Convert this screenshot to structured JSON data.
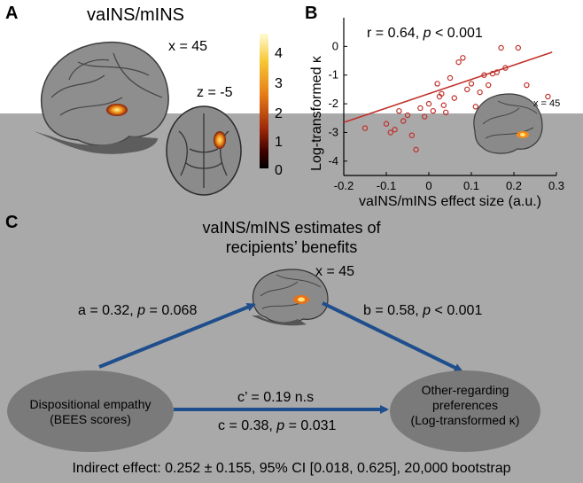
{
  "panel_a": {
    "letter": "A",
    "title": "vaINS/mINS",
    "sagittal_coord": "x = 45",
    "axial_coord": "z = -5",
    "colorbar_ticks": [
      "4",
      "3",
      "2",
      "1",
      "0"
    ]
  },
  "panel_b": {
    "letter": "B",
    "stats_prefix": "r = 0.64, ",
    "stats_p": "p",
    "stats_suffix": " < 0.001",
    "inset_coord": "x = 45",
    "chart_data": {
      "type": "scatter",
      "xlabel": "vaINS/mINS effect size (a.u.)",
      "ylabel": "Log-transformed κ",
      "xlim": [
        -0.2,
        0.3
      ],
      "ylim": [
        -4.5,
        1
      ],
      "xticks": [
        "-0.2",
        "-0.1",
        "0",
        "0.1",
        "0.2",
        "0.3"
      ],
      "yticks": [
        "0",
        "-1",
        "-2",
        "-3",
        "-4"
      ],
      "point_color": "#c0302a",
      "points": [
        [
          -0.15,
          -2.85
        ],
        [
          -0.1,
          -2.7
        ],
        [
          -0.09,
          -3.0
        ],
        [
          -0.08,
          -2.9
        ],
        [
          -0.07,
          -2.25
        ],
        [
          -0.06,
          -2.6
        ],
        [
          -0.05,
          -2.4
        ],
        [
          -0.04,
          -3.1
        ],
        [
          -0.03,
          -3.6
        ],
        [
          -0.02,
          -2.15
        ],
        [
          -0.01,
          -2.45
        ],
        [
          0.0,
          -2.0
        ],
        [
          0.01,
          -2.25
        ],
        [
          0.02,
          -1.3
        ],
        [
          0.025,
          -1.75
        ],
        [
          0.03,
          -1.65
        ],
        [
          0.035,
          -2.05
        ],
        [
          0.04,
          -2.3
        ],
        [
          0.05,
          -1.1
        ],
        [
          0.06,
          -1.8
        ],
        [
          0.07,
          -0.55
        ],
        [
          0.08,
          -0.4
        ],
        [
          0.09,
          -1.5
        ],
        [
          0.1,
          -1.3
        ],
        [
          0.11,
          -2.1
        ],
        [
          0.12,
          -1.6
        ],
        [
          0.13,
          -1.0
        ],
        [
          0.14,
          -1.35
        ],
        [
          0.15,
          -0.95
        ],
        [
          0.16,
          -0.9
        ],
        [
          0.17,
          -0.05
        ],
        [
          0.18,
          -0.75
        ],
        [
          0.21,
          -0.05
        ],
        [
          0.23,
          -1.35
        ],
        [
          0.28,
          -1.75
        ]
      ],
      "fit_line": [
        [
          -0.2,
          -2.65
        ],
        [
          0.29,
          -0.2
        ]
      ]
    }
  },
  "panel_c": {
    "letter": "C",
    "mediator_title": "vaINS/mINS estimates of recipients’ benefits",
    "mediator_line1": "vaINS/mINS estimates of",
    "mediator_line2": "recipients’ benefits",
    "mediator_coord": "x = 45",
    "predictor_line1": "Dispositional empathy",
    "predictor_line2": "(BEES scores)",
    "outcome_line1": "Other-regarding",
    "outcome_line2": "preferences",
    "outcome_line3": "(Log-transformed κ)",
    "path_a_prefix": "a = 0.32, ",
    "path_a_p": "p",
    "path_a_suffix": " = 0.068",
    "path_b_prefix": "b = 0.58, ",
    "path_b_p": "p",
    "path_b_suffix": " < 0.001",
    "path_c_prime": "c’ = 0.19 n.s",
    "path_c_prefix": "c = 0.38, ",
    "path_c_p": "p",
    "path_c_suffix": " = 0.031",
    "indirect_effect": "Indirect effect: 0.252 ± 0.155, 95% CI [0.018, 0.625], 20,000 bootstrap",
    "arrow_color": "#1f4e8c"
  }
}
